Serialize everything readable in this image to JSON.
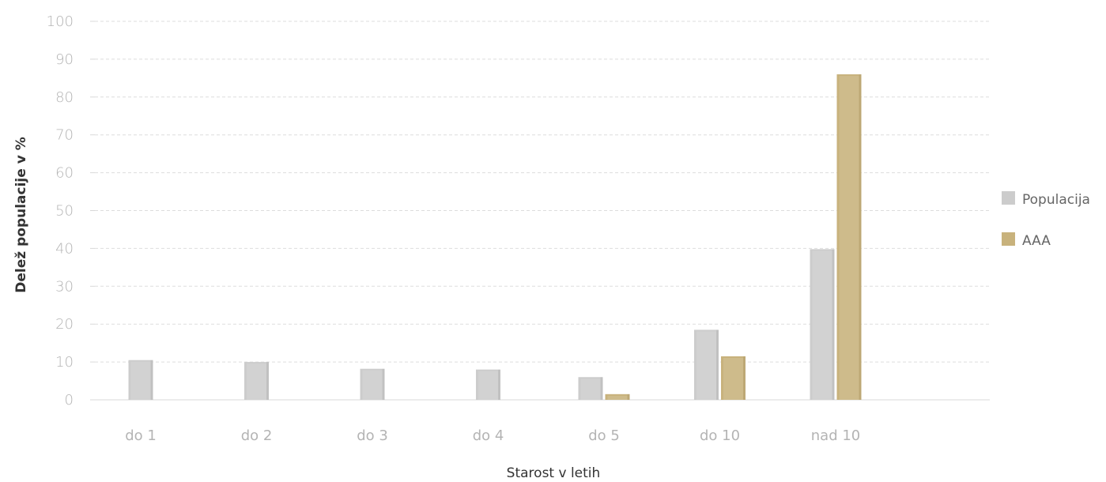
{
  "chart_data": {
    "type": "bar",
    "categories": [
      "do 1",
      "do 2",
      "do 3",
      "do 4",
      "do 5",
      "do 10",
      "nad 10"
    ],
    "series": [
      {
        "name": "Populacija",
        "color": "#cccccc",
        "values": [
          10.5,
          10.0,
          8.2,
          8.0,
          6.0,
          18.5,
          39.8
        ]
      },
      {
        "name": "AAA",
        "color": "#c8b27c",
        "values": [
          0,
          0,
          0,
          0,
          1.5,
          11.5,
          86.0
        ]
      }
    ],
    "xlabel": "Starost v letih",
    "ylabel": "Delež populacije v %",
    "ylim": [
      0,
      100
    ],
    "yticks": [
      "0",
      "10",
      "20",
      "30",
      "40",
      "50",
      "60",
      "70",
      "80",
      "90",
      "100"
    ],
    "grid": true,
    "legend_position": "right"
  }
}
